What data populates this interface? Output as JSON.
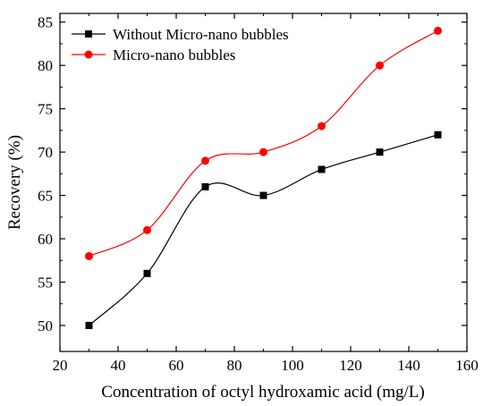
{
  "chart_data": {
    "type": "line",
    "title": "",
    "xlabel": "Concentration of octyl hydroxamic acid (mg/L)",
    "ylabel": "Recovery (%)",
    "xlim": [
      20,
      160
    ],
    "ylim": [
      47,
      86
    ],
    "xticks": [
      20,
      40,
      60,
      80,
      100,
      120,
      140,
      160
    ],
    "yticks": [
      50,
      55,
      60,
      65,
      70,
      75,
      80,
      85
    ],
    "x": [
      30,
      50,
      70,
      90,
      110,
      130,
      150
    ],
    "series": [
      {
        "name": "Without Micro-nano bubbles",
        "values": [
          50,
          56,
          66,
          65,
          68,
          70,
          72
        ],
        "color": "#000000",
        "marker": "square"
      },
      {
        "name": "Micro-nano bubbles",
        "values": [
          58,
          61,
          69,
          70,
          73,
          80,
          84
        ],
        "color": "#ff0000",
        "marker": "circle"
      }
    ],
    "legend_position": "top-left",
    "grid": false,
    "smooth": true
  }
}
